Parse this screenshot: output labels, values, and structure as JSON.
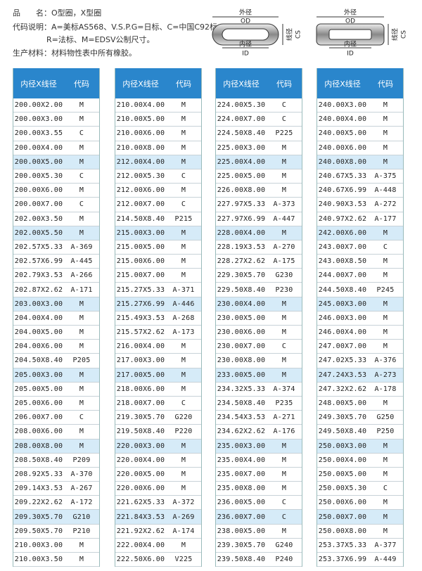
{
  "header": {
    "lines": [
      "品　　名：O型圈，X型圈",
      "代码说明：A=美标AS568、V.S.P.G=日标、C=中国C92标、",
      "R=法标、M=EDSV公制尺寸。",
      "生产材料：材料物性表中所有橡胶。"
    ]
  },
  "diagram": {
    "od_cn": "外径",
    "od": "OD",
    "id_cn": "内径",
    "id": "ID",
    "cs_cn": "线径",
    "cs": "CS"
  },
  "table_header": [
    "内径X线径",
    "代码"
  ],
  "highlight_rows": [
    4,
    9,
    14,
    19,
    24,
    29
  ],
  "tables": [
    {
      "rows": [
        [
          "200.00X2.00",
          "M"
        ],
        [
          "200.00X3.00",
          "M"
        ],
        [
          "200.00X3.55",
          "C"
        ],
        [
          "200.00X4.00",
          "M"
        ],
        [
          "200.00X5.00",
          "M"
        ],
        [
          "200.00X5.30",
          "C"
        ],
        [
          "200.00X6.00",
          "M"
        ],
        [
          "200.00X7.00",
          "C"
        ],
        [
          "202.00X3.50",
          "M"
        ],
        [
          "202.00X5.50",
          "M"
        ],
        [
          "202.57X5.33",
          "A-369"
        ],
        [
          "202.57X6.99",
          "A-445"
        ],
        [
          "202.79X3.53",
          "A-266"
        ],
        [
          "202.87X2.62",
          "A-171"
        ],
        [
          "203.00X3.00",
          "M"
        ],
        [
          "204.00X4.00",
          "M"
        ],
        [
          "204.00X5.00",
          "M"
        ],
        [
          "204.00X6.00",
          "M"
        ],
        [
          "204.50X8.40",
          "P205"
        ],
        [
          "205.00X3.00",
          "M"
        ],
        [
          "205.00X5.00",
          "M"
        ],
        [
          "205.00X6.00",
          "M"
        ],
        [
          "206.00X7.00",
          "C"
        ],
        [
          "208.00X6.00",
          "M"
        ],
        [
          "208.00X8.00",
          "M"
        ],
        [
          "208.50X8.40",
          "P209"
        ],
        [
          "208.92X5.33",
          "A-370"
        ],
        [
          "209.14X3.53",
          "A-267"
        ],
        [
          "209.22X2.62",
          "A-172"
        ],
        [
          "209.30X5.70",
          "G210"
        ],
        [
          "209.50X5.70",
          "P210"
        ],
        [
          "210.00X3.00",
          "M"
        ],
        [
          "210.00X3.50",
          "M"
        ]
      ]
    },
    {
      "rows": [
        [
          "210.00X4.00",
          "M"
        ],
        [
          "210.00X5.00",
          "M"
        ],
        [
          "210.00X6.00",
          "M"
        ],
        [
          "210.00X8.00",
          "M"
        ],
        [
          "212.00X4.00",
          "M"
        ],
        [
          "212.00X5.30",
          "C"
        ],
        [
          "212.00X6.00",
          "M"
        ],
        [
          "212.00X7.00",
          "C"
        ],
        [
          "214.50X8.40",
          "P215"
        ],
        [
          "215.00X3.00",
          "M"
        ],
        [
          "215.00X5.00",
          "M"
        ],
        [
          "215.00X6.00",
          "M"
        ],
        [
          "215.00X7.00",
          "M"
        ],
        [
          "215.27X5.33",
          "A-371"
        ],
        [
          "215.27X6.99",
          "A-446"
        ],
        [
          "215.49X3.53",
          "A-268"
        ],
        [
          "215.57X2.62",
          "A-173"
        ],
        [
          "216.00X4.00",
          "M"
        ],
        [
          "217.00X3.00",
          "M"
        ],
        [
          "217.00X5.00",
          "M"
        ],
        [
          "218.00X6.00",
          "M"
        ],
        [
          "218.00X7.00",
          "C"
        ],
        [
          "219.30X5.70",
          "G220"
        ],
        [
          "219.50X8.40",
          "P220"
        ],
        [
          "220.00X3.00",
          "M"
        ],
        [
          "220.00X4.00",
          "M"
        ],
        [
          "220.00X5.00",
          "M"
        ],
        [
          "220.00X6.00",
          "M"
        ],
        [
          "221.62X5.33",
          "A-372"
        ],
        [
          "221.84X3.53",
          "A-269"
        ],
        [
          "221.92X2.62",
          "A-174"
        ],
        [
          "222.00X4.00",
          "M"
        ],
        [
          "222.50X6.00",
          "V225"
        ]
      ]
    },
    {
      "rows": [
        [
          "224.00X5.30",
          "C"
        ],
        [
          "224.00X7.00",
          "C"
        ],
        [
          "224.50X8.40",
          "P225"
        ],
        [
          "225.00X3.00",
          "M"
        ],
        [
          "225.00X4.00",
          "M"
        ],
        [
          "225.00X5.00",
          "M"
        ],
        [
          "226.00X8.00",
          "M"
        ],
        [
          "227.97X5.33",
          "A-373"
        ],
        [
          "227.97X6.99",
          "A-447"
        ],
        [
          "228.00X4.00",
          "M"
        ],
        [
          "228.19X3.53",
          "A-270"
        ],
        [
          "228.27X2.62",
          "A-175"
        ],
        [
          "229.30X5.70",
          "G230"
        ],
        [
          "229.50X8.40",
          "P230"
        ],
        [
          "230.00X4.00",
          "M"
        ],
        [
          "230.00X5.00",
          "M"
        ],
        [
          "230.00X6.00",
          "M"
        ],
        [
          "230.00X7.00",
          "C"
        ],
        [
          "230.00X8.00",
          "M"
        ],
        [
          "233.00X5.00",
          "M"
        ],
        [
          "234.32X5.33",
          "A-374"
        ],
        [
          "234.50X8.40",
          "P235"
        ],
        [
          "234.54X3.53",
          "A-271"
        ],
        [
          "234.62X2.62",
          "A-176"
        ],
        [
          "235.00X3.00",
          "M"
        ],
        [
          "235.00X4.00",
          "M"
        ],
        [
          "235.00X7.00",
          "M"
        ],
        [
          "235.00X8.00",
          "M"
        ],
        [
          "236.00X5.00",
          "C"
        ],
        [
          "236.00X7.00",
          "C"
        ],
        [
          "238.00X5.00",
          "M"
        ],
        [
          "239.30X5.70",
          "G240"
        ],
        [
          "239.50X8.40",
          "P240"
        ]
      ]
    },
    {
      "rows": [
        [
          "240.00X3.00",
          "M"
        ],
        [
          "240.00X4.00",
          "M"
        ],
        [
          "240.00X5.00",
          "M"
        ],
        [
          "240.00X6.00",
          "M"
        ],
        [
          "240.00X8.00",
          "M"
        ],
        [
          "240.67X5.33",
          "A-375"
        ],
        [
          "240.67X6.99",
          "A-448"
        ],
        [
          "240.90X3.53",
          "A-272"
        ],
        [
          "240.97X2.62",
          "A-177"
        ],
        [
          "242.00X6.00",
          "M"
        ],
        [
          "243.00X7.00",
          "C"
        ],
        [
          "243.00X8.50",
          "M"
        ],
        [
          "244.00X7.00",
          "M"
        ],
        [
          "244.50X8.40",
          "P245"
        ],
        [
          "245.00X3.00",
          "M"
        ],
        [
          "246.00X3.00",
          "M"
        ],
        [
          "246.00X4.00",
          "M"
        ],
        [
          "247.00X7.00",
          "M"
        ],
        [
          "247.02X5.33",
          "A-376"
        ],
        [
          "247.24X3.53",
          "A-273"
        ],
        [
          "247.32X2.62",
          "A-178"
        ],
        [
          "248.00X5.00",
          "M"
        ],
        [
          "249.30X5.70",
          "G250"
        ],
        [
          "249.50X8.40",
          "P250"
        ],
        [
          "250.00X3.00",
          "M"
        ],
        [
          "250.00X4.00",
          "M"
        ],
        [
          "250.00X5.00",
          "M"
        ],
        [
          "250.00X5.30",
          "C"
        ],
        [
          "250.00X6.00",
          "M"
        ],
        [
          "250.00X7.00",
          "M"
        ],
        [
          "250.00X8.00",
          "M"
        ],
        [
          "253.37X5.33",
          "A-377"
        ],
        [
          "253.37X6.99",
          "A-449"
        ]
      ]
    }
  ]
}
